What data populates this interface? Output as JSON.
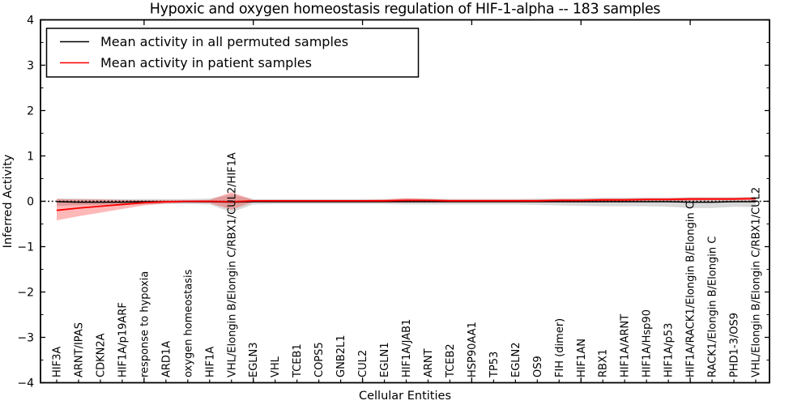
{
  "figure": {
    "background": "#ffffff",
    "frame_color": "#000000"
  },
  "chart_data": {
    "type": "line",
    "title": "Hypoxic and oxygen homeostasis regulation of HIF-1-alpha -- 183 samples",
    "xlabel": "Cellular Entities",
    "ylabel": "Inferred Activity",
    "ylim": [
      -4,
      4
    ],
    "yticks": [
      4,
      3,
      2,
      1,
      0,
      -1,
      -2,
      -3,
      -4
    ],
    "ytick_labels": [
      "4",
      "3",
      "2",
      "1",
      "0",
      "−1",
      "−2",
      "−3",
      "−4"
    ],
    "y_minor_step": 0.5,
    "x_major_tick_positions": [
      5,
      10,
      15,
      20,
      25,
      30
    ],
    "grid": false,
    "legend_position": "upper left",
    "zero_line": {
      "style": "dotted",
      "color": "#000000"
    },
    "categories": [
      "HIF3A",
      "ARNT/IPAS",
      "CDKN2A",
      "HIF1A/p19ARF",
      "response to hypoxia",
      "ARD1A",
      "oxygen homeostasis",
      "HIF1A",
      "VHL/Elongin B/Elongin C/RBX1/CUL2/HIF1A",
      "EGLN3",
      "VHL",
      "TCEB1",
      "COPS5",
      "GNB2L1",
      "CUL2",
      "EGLN1",
      "HIF1A/JAB1",
      "ARNT",
      "TCEB2",
      "HSP90AA1",
      "TP53",
      "EGLN2",
      "OS9",
      "FIH (dimer)",
      "HIF1AN",
      "RBX1",
      "HIF1A/ARNT",
      "HIF1A/Hsp90",
      "HIF1A/p53",
      "HIF1A/RACK1/Elongin B/Elongin C",
      "RACK1/Elongin B/Elongin C",
      "PHD1-3/OS9",
      "VHL/Elongin B/Elongin C/RBX1/CUL2"
    ],
    "series": [
      {
        "name": "Mean activity in all permuted samples",
        "color": "#000000",
        "values": [
          -0.01,
          -0.02,
          -0.02,
          -0.02,
          -0.01,
          -0.01,
          -0.01,
          -0.01,
          -0.02,
          -0.01,
          -0.01,
          -0.01,
          -0.01,
          -0.01,
          -0.01,
          -0.01,
          -0.01,
          -0.01,
          -0.01,
          -0.01,
          -0.01,
          -0.01,
          -0.01,
          -0.01,
          -0.01,
          -0.01,
          -0.01,
          -0.01,
          -0.01,
          -0.02,
          -0.02,
          -0.01,
          -0.01
        ],
        "band": {
          "color": "#808080",
          "opacity": 0.3,
          "lower": [
            -0.1,
            -0.09,
            -0.08,
            -0.07,
            -0.07,
            -0.06,
            -0.06,
            -0.07,
            -0.24,
            -0.07,
            -0.06,
            -0.06,
            -0.06,
            -0.06,
            -0.06,
            -0.06,
            -0.07,
            -0.07,
            -0.07,
            -0.07,
            -0.07,
            -0.07,
            -0.08,
            -0.09,
            -0.1,
            -0.11,
            -0.11,
            -0.11,
            -0.12,
            -0.15,
            -0.15,
            -0.12,
            -0.13
          ],
          "upper": [
            0.06,
            0.06,
            0.05,
            0.05,
            0.05,
            0.05,
            0.05,
            0.06,
            0.15,
            0.05,
            0.05,
            0.05,
            0.05,
            0.05,
            0.05,
            0.05,
            0.06,
            0.06,
            0.05,
            0.05,
            0.05,
            0.05,
            0.06,
            0.06,
            0.07,
            0.08,
            0.08,
            0.08,
            0.08,
            0.09,
            0.09,
            0.09,
            0.1
          ]
        }
      },
      {
        "name": "Mean activity in patient samples",
        "color": "#ff0000",
        "values": [
          -0.2,
          -0.15,
          -0.11,
          -0.07,
          -0.03,
          -0.01,
          0.0,
          0.0,
          -0.01,
          0.01,
          0.01,
          0.01,
          0.01,
          0.01,
          0.01,
          0.01,
          0.02,
          0.02,
          0.01,
          0.01,
          0.01,
          0.01,
          0.01,
          0.02,
          0.02,
          0.03,
          0.03,
          0.04,
          0.04,
          0.05,
          0.05,
          0.05,
          0.06
        ],
        "band": {
          "color": "#ff0000",
          "opacity": 0.28,
          "lower": [
            -0.42,
            -0.33,
            -0.25,
            -0.17,
            -0.09,
            -0.05,
            -0.03,
            -0.04,
            -0.18,
            -0.02,
            -0.02,
            -0.02,
            -0.02,
            -0.02,
            -0.02,
            -0.02,
            -0.02,
            -0.01,
            -0.01,
            -0.01,
            -0.01,
            -0.01,
            -0.01,
            0.0,
            0.0,
            0.0,
            0.0,
            0.01,
            0.01,
            0.01,
            0.02,
            0.02,
            0.02
          ],
          "upper": [
            0.05,
            0.04,
            0.04,
            0.03,
            0.02,
            0.02,
            0.02,
            0.03,
            0.2,
            0.03,
            0.03,
            0.03,
            0.03,
            0.03,
            0.03,
            0.04,
            0.07,
            0.05,
            0.04,
            0.04,
            0.04,
            0.04,
            0.04,
            0.05,
            0.05,
            0.06,
            0.06,
            0.07,
            0.07,
            0.08,
            0.08,
            0.08,
            0.09
          ]
        }
      }
    ]
  }
}
